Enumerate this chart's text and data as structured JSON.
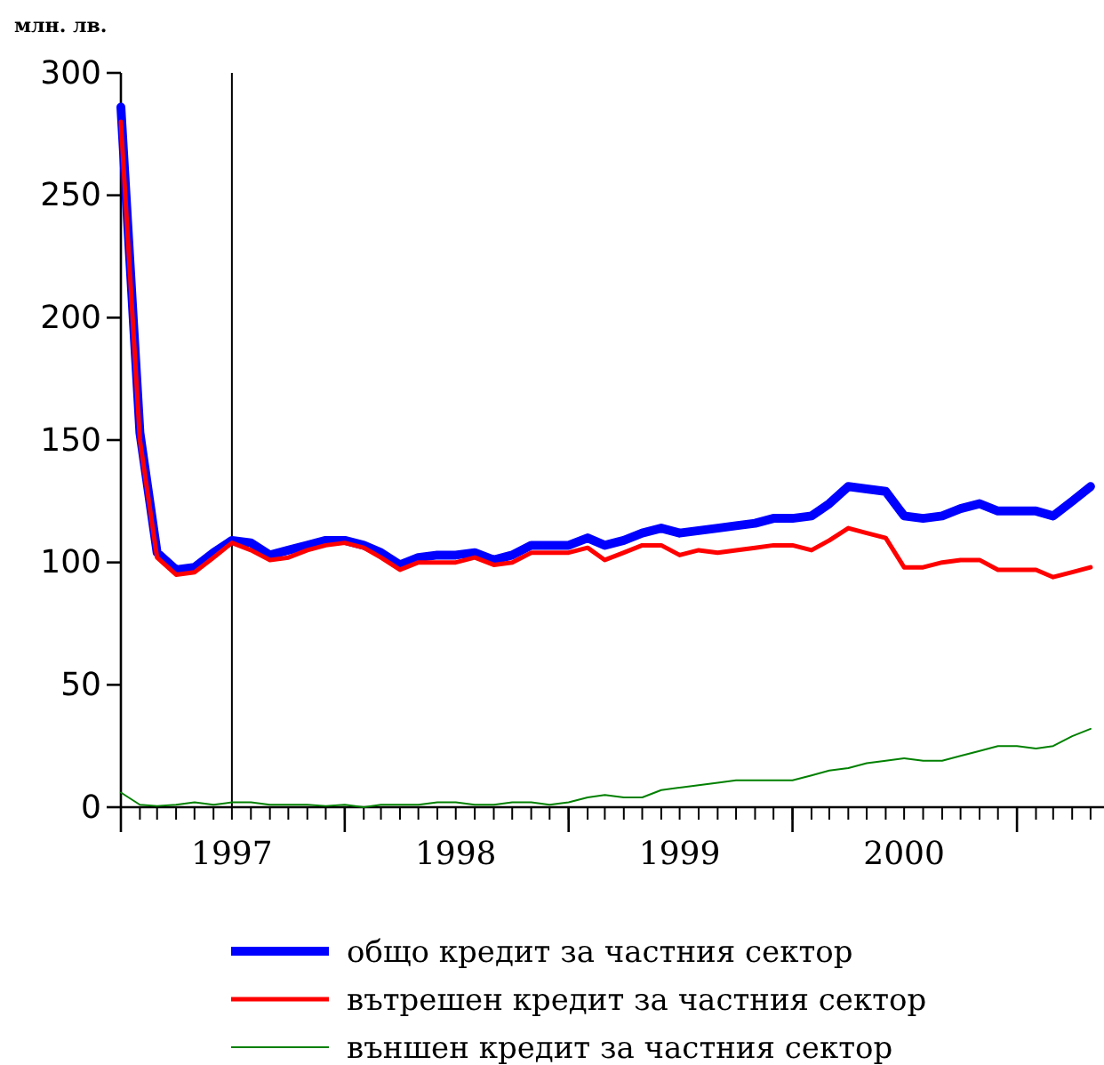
{
  "chart_data": {
    "type": "line",
    "ylabel": "млн. лв.",
    "x": [
      "1997-01",
      "1997-02",
      "1997-03",
      "1997-04",
      "1997-05",
      "1997-06",
      "1997-07",
      "1997-08",
      "1997-09",
      "1997-10",
      "1997-11",
      "1997-12",
      "1998-01",
      "1998-02",
      "1998-03",
      "1998-04",
      "1998-05",
      "1998-06",
      "1998-07",
      "1998-08",
      "1998-09",
      "1998-10",
      "1998-11",
      "1998-12",
      "1999-01",
      "1999-02",
      "1999-03",
      "1999-04",
      "1999-05",
      "1999-06",
      "1999-07",
      "1999-08",
      "1999-09",
      "1999-10",
      "1999-11",
      "1999-12",
      "2000-01",
      "2000-02",
      "2000-03",
      "2000-04",
      "2000-05",
      "2000-06",
      "2000-07",
      "2000-08",
      "2000-09",
      "2000-10",
      "2000-11",
      "2000-12",
      "2001-01",
      "2001-02",
      "2001-03",
      "2001-04",
      "2001-05"
    ],
    "series": [
      {
        "name": "общо кредит за частния сектор",
        "color": "#0000ff",
        "values": [
          286,
          153,
          104,
          97,
          98,
          104,
          109,
          108,
          103,
          105,
          107,
          109,
          109,
          107,
          104,
          99,
          102,
          103,
          103,
          104,
          101,
          103,
          107,
          107,
          107,
          110,
          107,
          109,
          112,
          114,
          112,
          113,
          114,
          115,
          116,
          118,
          118,
          119,
          124,
          131,
          130,
          129,
          119,
          118,
          119,
          122,
          124,
          121,
          121,
          121,
          119,
          125,
          131
        ]
      },
      {
        "name": "вътрешен кредит за частния сектор",
        "color": "#ff0000",
        "values": [
          280,
          150,
          102,
          95,
          96,
          102,
          108,
          105,
          101,
          102,
          105,
          107,
          108,
          106,
          102,
          97,
          100,
          100,
          100,
          102,
          99,
          100,
          104,
          104,
          104,
          106,
          101,
          104,
          107,
          107,
          103,
          105,
          104,
          105,
          106,
          107,
          107,
          105,
          109,
          114,
          112,
          110,
          98,
          98,
          100,
          101,
          101,
          97,
          97,
          97,
          94,
          96,
          98
        ]
      },
      {
        "name": "външен кредит за частния сектор",
        "color": "#008000",
        "values": [
          6,
          1,
          0.5,
          1,
          2,
          1,
          2,
          2,
          1,
          1,
          1,
          0.5,
          1,
          0,
          1,
          1,
          1,
          2,
          2,
          1,
          1,
          2,
          2,
          1,
          2,
          4,
          5,
          4,
          4,
          7,
          8,
          9,
          10,
          11,
          11,
          11,
          11,
          13,
          15,
          16,
          18,
          19,
          20,
          19,
          19,
          21,
          23,
          25,
          25,
          24,
          25,
          29,
          32
        ]
      }
    ],
    "xlim": [
      "1997-01-01",
      "2001-05-20"
    ],
    "xticks": [
      {
        "value": "1997-01-01",
        "label": null
      },
      {
        "value": "1997-07-01",
        "label": "1997"
      },
      {
        "value": "1998-01-01",
        "label": null
      },
      {
        "value": "1998-07-01",
        "label": "1998"
      },
      {
        "value": "1999-01-01",
        "label": null
      },
      {
        "value": "1999-07-01",
        "label": "1999"
      },
      {
        "value": "2000-01-01",
        "label": null
      },
      {
        "value": "2000-07-01",
        "label": "2000"
      },
      {
        "value": "2001-01-01",
        "label": null
      }
    ],
    "ylim": [
      0,
      300
    ],
    "yticks": [
      0,
      50,
      100,
      150,
      200,
      250,
      300
    ],
    "ref_lines": [
      {
        "axis": "x",
        "value": "1997-07-01",
        "label": null,
        "color": "#000000"
      }
    ],
    "grid": false,
    "legend": "bottom",
    "marker": "none",
    "line_style": "solid"
  }
}
